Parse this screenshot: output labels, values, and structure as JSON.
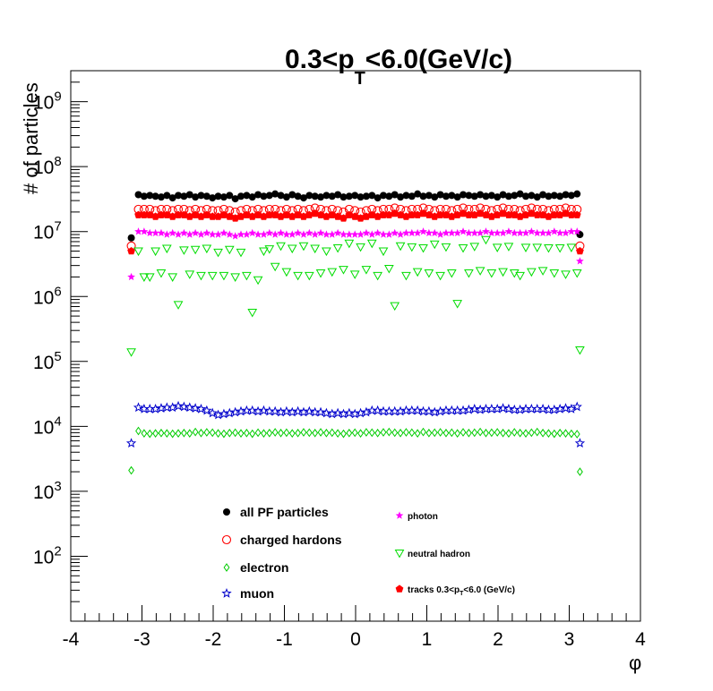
{
  "chart_data": {
    "type": "scatter",
    "title": {
      "pre": "0.3<p",
      "sub": "T",
      "post": "<6.0(GeV/c)"
    },
    "xlabel": "φ",
    "ylabel": "# of particles",
    "xlim": [
      -4,
      4
    ],
    "ylim": [
      10,
      3000000000
    ],
    "yscale": "log",
    "xticks": [
      "-4",
      "-3",
      "-2",
      "-1",
      "0",
      "1",
      "2",
      "3",
      "4"
    ],
    "yticks": [
      {
        "base": "10",
        "exp": "2",
        "value": 100
      },
      {
        "base": "10",
        "exp": "3",
        "value": 1000
      },
      {
        "base": "10",
        "exp": "4",
        "value": 10000
      },
      {
        "base": "10",
        "exp": "5",
        "value": 100000
      },
      {
        "base": "10",
        "exp": "6",
        "value": 1000000
      },
      {
        "base": "10",
        "exp": "7",
        "value": 10000000
      },
      {
        "base": "10",
        "exp": "8",
        "value": 100000000
      },
      {
        "base": "10",
        "exp": "9",
        "value": 1000000000
      }
    ],
    "x": [
      -3.15,
      -3.05,
      -2.97,
      -2.89,
      -2.81,
      -2.73,
      -2.65,
      -2.57,
      -2.49,
      -2.41,
      -2.33,
      -2.25,
      -2.17,
      -2.09,
      -2.01,
      -1.93,
      -1.85,
      -1.77,
      -1.69,
      -1.61,
      -1.53,
      -1.45,
      -1.37,
      -1.29,
      -1.21,
      -1.13,
      -1.05,
      -0.97,
      -0.89,
      -0.81,
      -0.73,
      -0.65,
      -0.57,
      -0.49,
      -0.41,
      -0.33,
      -0.25,
      -0.17,
      -0.09,
      -0.01,
      0.07,
      0.15,
      0.23,
      0.31,
      0.39,
      0.47,
      0.55,
      0.63,
      0.71,
      0.79,
      0.87,
      0.95,
      1.03,
      1.11,
      1.19,
      1.27,
      1.35,
      1.43,
      1.51,
      1.59,
      1.67,
      1.75,
      1.83,
      1.91,
      1.99,
      2.07,
      2.15,
      2.23,
      2.31,
      2.39,
      2.47,
      2.55,
      2.63,
      2.71,
      2.79,
      2.87,
      2.95,
      3.03,
      3.11,
      3.15
    ],
    "series": [
      {
        "name": "all PF particles",
        "marker": "filled-circle",
        "color": "#000000",
        "values": [
          8000000,
          37000000,
          35000000,
          36000000,
          35000000,
          34000000,
          36000000,
          33000000,
          36000000,
          35000000,
          37000000,
          34000000,
          36000000,
          35000000,
          33000000,
          35000000,
          34000000,
          36000000,
          32000000,
          35000000,
          36000000,
          34000000,
          37000000,
          35000000,
          36000000,
          38000000,
          36000000,
          34000000,
          37000000,
          35000000,
          33000000,
          36000000,
          35000000,
          34000000,
          36000000,
          35000000,
          37000000,
          34000000,
          35000000,
          36000000,
          34000000,
          35000000,
          36000000,
          33000000,
          36000000,
          35000000,
          37000000,
          34000000,
          36000000,
          35000000,
          38000000,
          35000000,
          36000000,
          34000000,
          37000000,
          35000000,
          36000000,
          34000000,
          37000000,
          36000000,
          35000000,
          37000000,
          35000000,
          36000000,
          34000000,
          37000000,
          35000000,
          36000000,
          38000000,
          35000000,
          36000000,
          34000000,
          37000000,
          35000000,
          36000000,
          35000000,
          37000000,
          36000000,
          38000000,
          9000000
        ]
      },
      {
        "name": "charged hardons",
        "marker": "open-circle",
        "color": "#ff0000",
        "values": [
          6000000,
          22000000,
          22000000,
          22000000,
          21000000,
          22000000,
          22000000,
          21000000,
          22000000,
          22000000,
          21000000,
          22000000,
          21000000,
          22000000,
          21000000,
          21000000,
          22000000,
          21000000,
          20000000,
          21000000,
          22000000,
          21000000,
          22000000,
          21000000,
          22000000,
          22000000,
          21000000,
          22000000,
          21000000,
          22000000,
          21000000,
          22000000,
          23000000,
          22000000,
          21000000,
          22000000,
          21000000,
          20000000,
          22000000,
          21000000,
          20000000,
          21000000,
          22000000,
          21000000,
          22000000,
          22000000,
          23000000,
          22000000,
          21000000,
          22000000,
          22000000,
          23000000,
          22000000,
          21000000,
          22000000,
          22000000,
          21000000,
          22000000,
          23000000,
          22000000,
          22000000,
          23000000,
          22000000,
          21000000,
          22000000,
          23000000,
          22000000,
          22000000,
          21000000,
          22000000,
          23000000,
          22000000,
          22000000,
          21000000,
          22000000,
          22000000,
          23000000,
          22000000,
          22000000,
          6000000
        ]
      },
      {
        "name": "tracks 0.3<p_T<6.0 (GeV/c)",
        "marker": "filled-pentagon",
        "color": "#ff0000",
        "values": [
          5000000,
          18000000,
          18000000,
          18000000,
          17000000,
          18000000,
          18000000,
          17000000,
          18000000,
          18000000,
          17000000,
          18000000,
          17000000,
          18000000,
          17000000,
          17000000,
          18000000,
          17000000,
          16000000,
          17000000,
          18000000,
          17000000,
          18000000,
          17000000,
          18000000,
          18000000,
          17000000,
          18000000,
          17000000,
          18000000,
          17000000,
          18000000,
          19000000,
          18000000,
          17000000,
          18000000,
          17000000,
          16000000,
          18000000,
          17000000,
          16000000,
          17000000,
          18000000,
          17000000,
          18000000,
          18000000,
          19000000,
          18000000,
          17000000,
          18000000,
          18000000,
          19000000,
          18000000,
          17000000,
          18000000,
          18000000,
          17000000,
          18000000,
          19000000,
          18000000,
          18000000,
          19000000,
          18000000,
          17000000,
          18000000,
          19000000,
          18000000,
          18000000,
          17000000,
          18000000,
          19000000,
          18000000,
          18000000,
          17000000,
          18000000,
          18000000,
          19000000,
          18000000,
          18000000,
          5000000
        ]
      },
      {
        "name": "photon",
        "marker": "filled-star",
        "color": "#ff00ff",
        "values": [
          2000000,
          10000000,
          10000000,
          9500000,
          9500000,
          9500000,
          9000000,
          9500000,
          9000000,
          9500000,
          9000000,
          9500000,
          9000000,
          9500000,
          9000000,
          9000000,
          9500000,
          9000000,
          8500000,
          9000000,
          9000000,
          9500000,
          9000000,
          9000000,
          9500000,
          9000000,
          9500000,
          9000000,
          9000000,
          9500000,
          9000000,
          9500000,
          9000000,
          9500000,
          9000000,
          9000000,
          9500000,
          9000000,
          9000000,
          9000000,
          9000000,
          9500000,
          9000000,
          9500000,
          9000000,
          9000000,
          9500000,
          9000000,
          9500000,
          9500000,
          9500000,
          10000000,
          9500000,
          9500000,
          9000000,
          9500000,
          9500000,
          9500000,
          10000000,
          9500000,
          9500000,
          9500000,
          10000000,
          9500000,
          9500000,
          9500000,
          10000000,
          9500000,
          9500000,
          9500000,
          10000000,
          9500000,
          9500000,
          9500000,
          10000000,
          9500000,
          9500000,
          10000000,
          10000000,
          3500000
        ]
      },
      {
        "name": "neutral hadron",
        "marker": "open-triangle-down",
        "color": "#00dd00",
        "values": [
          140000,
          5000000,
          2000000,
          2000000,
          5000000,
          2300000,
          5500000,
          2000000,
          750000,
          5200000,
          2200000,
          5300000,
          2100000,
          5500000,
          2100000,
          4800000,
          2100000,
          5300000,
          2000000,
          4800000,
          2100000,
          570000,
          1800000,
          5000000,
          5400000,
          2900000,
          6000000,
          2400000,
          5500000,
          2100000,
          6000000,
          2100000,
          5500000,
          2300000,
          5000000,
          2400000,
          5600000,
          2600000,
          6600000,
          2200000,
          5800000,
          2600000,
          6600000,
          2100000,
          5000000,
          2700000,
          720000,
          6000000,
          2100000,
          5800000,
          2400000,
          5600000,
          2300000,
          6400000,
          2100000,
          5800000,
          2300000,
          780000,
          5600000,
          2300000,
          5900000,
          2500000,
          7500000,
          2300000,
          5700000,
          2400000,
          5900000,
          2300000,
          2100000,
          5700000,
          2400000,
          5700000,
          2500000,
          5600000,
          2300000,
          5600000,
          2200000,
          5700000,
          2300000,
          150000
        ]
      },
      {
        "name": "electron",
        "marker": "open-diamond",
        "color": "#00cc00",
        "values": [
          2100,
          8500,
          7800,
          7700,
          7800,
          7900,
          7800,
          7700,
          7800,
          7900,
          7800,
          8200,
          7900,
          8100,
          8000,
          7800,
          7700,
          7900,
          8000,
          7800,
          7900,
          7700,
          8000,
          7800,
          7900,
          8100,
          7900,
          8000,
          7800,
          7900,
          8100,
          8000,
          7900,
          8100,
          7900,
          8000,
          7800,
          7700,
          7900,
          8000,
          7800,
          8100,
          8000,
          7900,
          8100,
          8200,
          8000,
          7900,
          8100,
          8000,
          7800,
          8200,
          7900,
          8000,
          8100,
          7900,
          8000,
          7800,
          8100,
          7900,
          8000,
          8200,
          7900,
          8000,
          8100,
          7900,
          7800,
          8100,
          7900,
          7800,
          8000,
          8200,
          7900,
          7800,
          7700,
          7900,
          7800,
          7700,
          7600,
          2000
        ]
      },
      {
        "name": "muon",
        "marker": "open-star",
        "color": "#0000cc",
        "values": [
          5500,
          19500,
          18500,
          18500,
          18500,
          19000,
          19500,
          19500,
          20500,
          20000,
          19500,
          19000,
          18500,
          17500,
          16000,
          15000,
          15500,
          16000,
          16500,
          17000,
          17500,
          17500,
          17000,
          17500,
          17000,
          17000,
          16500,
          17000,
          16500,
          17000,
          16500,
          17000,
          16500,
          16500,
          16000,
          15500,
          16000,
          15500,
          16000,
          15500,
          16000,
          16500,
          17500,
          17500,
          17000,
          17000,
          17000,
          17000,
          17500,
          17500,
          17500,
          17000,
          17000,
          16500,
          17000,
          17500,
          17500,
          17500,
          17500,
          18000,
          18500,
          18000,
          18500,
          18500,
          18500,
          19000,
          18500,
          18000,
          18000,
          18500,
          18500,
          18500,
          18500,
          18000,
          18000,
          18500,
          19000,
          18500,
          20000,
          5500
        ]
      }
    ],
    "legend": {
      "left": [
        {
          "label": "all PF particles",
          "series": 0
        },
        {
          "label": "charged hardons",
          "series": 1
        },
        {
          "label": "electron",
          "series": 5
        },
        {
          "label": "muon",
          "series": 6
        }
      ],
      "right": [
        {
          "label": "photon",
          "series": 3
        },
        {
          "label": "neutral hadron",
          "series": 4
        },
        {
          "label": "tracks 0.3<p",
          "sub": "T",
          "post": "<6.0 (GeV/c)",
          "series": 2
        }
      ]
    },
    "grid": false,
    "legend_position": "bottom-center"
  }
}
